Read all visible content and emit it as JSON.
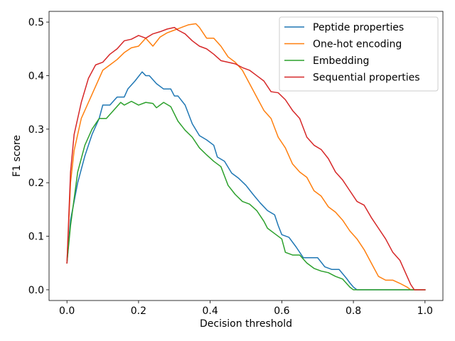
{
  "chart_data": {
    "type": "line",
    "title": "",
    "xlabel": "Decision threshold",
    "ylabel": "F1 score",
    "xlim": [
      -0.05,
      1.05
    ],
    "ylim": [
      -0.02,
      0.52
    ],
    "xticks": [
      0.0,
      0.2,
      0.4,
      0.6,
      0.8,
      1.0
    ],
    "xtick_labels": [
      "0.0",
      "0.2",
      "0.4",
      "0.6",
      "0.8",
      "1.0"
    ],
    "yticks": [
      0.0,
      0.1,
      0.2,
      0.3,
      0.4,
      0.5
    ],
    "ytick_labels": [
      "0.0",
      "0.1",
      "0.2",
      "0.3",
      "0.4",
      "0.5"
    ],
    "grid": false,
    "legend_position": "top-right",
    "series": [
      {
        "name": "Peptide properties",
        "color": "#1f77b4",
        "points": [
          [
            0.0,
            0.05
          ],
          [
            0.01,
            0.13
          ],
          [
            0.03,
            0.2
          ],
          [
            0.05,
            0.25
          ],
          [
            0.07,
            0.29
          ],
          [
            0.09,
            0.32
          ],
          [
            0.1,
            0.345
          ],
          [
            0.12,
            0.345
          ],
          [
            0.14,
            0.36
          ],
          [
            0.16,
            0.36
          ],
          [
            0.17,
            0.375
          ],
          [
            0.19,
            0.39
          ],
          [
            0.21,
            0.407
          ],
          [
            0.22,
            0.4
          ],
          [
            0.23,
            0.4
          ],
          [
            0.25,
            0.385
          ],
          [
            0.27,
            0.375
          ],
          [
            0.29,
            0.375
          ],
          [
            0.3,
            0.362
          ],
          [
            0.31,
            0.362
          ],
          [
            0.33,
            0.345
          ],
          [
            0.35,
            0.31
          ],
          [
            0.37,
            0.288
          ],
          [
            0.39,
            0.28
          ],
          [
            0.41,
            0.27
          ],
          [
            0.42,
            0.248
          ],
          [
            0.44,
            0.24
          ],
          [
            0.46,
            0.218
          ],
          [
            0.48,
            0.208
          ],
          [
            0.5,
            0.195
          ],
          [
            0.52,
            0.178
          ],
          [
            0.54,
            0.162
          ],
          [
            0.56,
            0.148
          ],
          [
            0.58,
            0.14
          ],
          [
            0.59,
            0.12
          ],
          [
            0.6,
            0.103
          ],
          [
            0.62,
            0.098
          ],
          [
            0.64,
            0.08
          ],
          [
            0.66,
            0.06
          ],
          [
            0.68,
            0.06
          ],
          [
            0.7,
            0.06
          ],
          [
            0.72,
            0.043
          ],
          [
            0.74,
            0.038
          ],
          [
            0.76,
            0.038
          ],
          [
            0.78,
            0.022
          ],
          [
            0.79,
            0.013
          ],
          [
            0.8,
            0.005
          ],
          [
            0.81,
            0.0
          ],
          [
            1.0,
            0.0
          ]
        ]
      },
      {
        "name": "One-hot encoding",
        "color": "#ff7f0e",
        "points": [
          [
            0.0,
            0.05
          ],
          [
            0.01,
            0.2
          ],
          [
            0.02,
            0.26
          ],
          [
            0.04,
            0.32
          ],
          [
            0.06,
            0.35
          ],
          [
            0.08,
            0.38
          ],
          [
            0.1,
            0.41
          ],
          [
            0.12,
            0.42
          ],
          [
            0.14,
            0.43
          ],
          [
            0.16,
            0.443
          ],
          [
            0.18,
            0.452
          ],
          [
            0.2,
            0.455
          ],
          [
            0.22,
            0.47
          ],
          [
            0.24,
            0.455
          ],
          [
            0.26,
            0.472
          ],
          [
            0.28,
            0.48
          ],
          [
            0.3,
            0.485
          ],
          [
            0.32,
            0.49
          ],
          [
            0.34,
            0.495
          ],
          [
            0.36,
            0.497
          ],
          [
            0.37,
            0.49
          ],
          [
            0.39,
            0.47
          ],
          [
            0.41,
            0.47
          ],
          [
            0.43,
            0.455
          ],
          [
            0.45,
            0.435
          ],
          [
            0.47,
            0.425
          ],
          [
            0.49,
            0.41
          ],
          [
            0.51,
            0.385
          ],
          [
            0.53,
            0.36
          ],
          [
            0.55,
            0.335
          ],
          [
            0.57,
            0.32
          ],
          [
            0.59,
            0.285
          ],
          [
            0.61,
            0.265
          ],
          [
            0.63,
            0.235
          ],
          [
            0.65,
            0.22
          ],
          [
            0.67,
            0.21
          ],
          [
            0.69,
            0.185
          ],
          [
            0.71,
            0.175
          ],
          [
            0.73,
            0.155
          ],
          [
            0.75,
            0.145
          ],
          [
            0.77,
            0.13
          ],
          [
            0.79,
            0.11
          ],
          [
            0.81,
            0.095
          ],
          [
            0.83,
            0.075
          ],
          [
            0.85,
            0.05
          ],
          [
            0.87,
            0.025
          ],
          [
            0.89,
            0.018
          ],
          [
            0.91,
            0.018
          ],
          [
            0.93,
            0.012
          ],
          [
            0.95,
            0.005
          ],
          [
            0.96,
            0.0
          ],
          [
            1.0,
            0.0
          ]
        ]
      },
      {
        "name": "Embedding",
        "color": "#2ca02c",
        "points": [
          [
            0.0,
            0.05
          ],
          [
            0.01,
            0.12
          ],
          [
            0.03,
            0.22
          ],
          [
            0.05,
            0.27
          ],
          [
            0.07,
            0.3
          ],
          [
            0.09,
            0.32
          ],
          [
            0.11,
            0.32
          ],
          [
            0.13,
            0.335
          ],
          [
            0.15,
            0.35
          ],
          [
            0.16,
            0.345
          ],
          [
            0.18,
            0.352
          ],
          [
            0.2,
            0.345
          ],
          [
            0.22,
            0.35
          ],
          [
            0.24,
            0.348
          ],
          [
            0.25,
            0.34
          ],
          [
            0.27,
            0.35
          ],
          [
            0.29,
            0.342
          ],
          [
            0.31,
            0.315
          ],
          [
            0.33,
            0.298
          ],
          [
            0.35,
            0.285
          ],
          [
            0.37,
            0.265
          ],
          [
            0.39,
            0.252
          ],
          [
            0.41,
            0.24
          ],
          [
            0.43,
            0.23
          ],
          [
            0.45,
            0.195
          ],
          [
            0.47,
            0.178
          ],
          [
            0.49,
            0.165
          ],
          [
            0.51,
            0.16
          ],
          [
            0.53,
            0.148
          ],
          [
            0.55,
            0.128
          ],
          [
            0.56,
            0.115
          ],
          [
            0.58,
            0.105
          ],
          [
            0.6,
            0.095
          ],
          [
            0.61,
            0.07
          ],
          [
            0.63,
            0.065
          ],
          [
            0.65,
            0.065
          ],
          [
            0.67,
            0.05
          ],
          [
            0.69,
            0.04
          ],
          [
            0.71,
            0.035
          ],
          [
            0.73,
            0.032
          ],
          [
            0.75,
            0.025
          ],
          [
            0.77,
            0.02
          ],
          [
            0.79,
            0.005
          ],
          [
            0.8,
            0.0
          ],
          [
            1.0,
            0.0
          ]
        ]
      },
      {
        "name": "Sequential properties",
        "color": "#d62728",
        "points": [
          [
            0.0,
            0.05
          ],
          [
            0.01,
            0.22
          ],
          [
            0.02,
            0.29
          ],
          [
            0.04,
            0.35
          ],
          [
            0.06,
            0.395
          ],
          [
            0.08,
            0.42
          ],
          [
            0.1,
            0.425
          ],
          [
            0.12,
            0.44
          ],
          [
            0.14,
            0.45
          ],
          [
            0.16,
            0.465
          ],
          [
            0.18,
            0.468
          ],
          [
            0.2,
            0.475
          ],
          [
            0.22,
            0.47
          ],
          [
            0.24,
            0.478
          ],
          [
            0.26,
            0.482
          ],
          [
            0.28,
            0.487
          ],
          [
            0.3,
            0.49
          ],
          [
            0.31,
            0.485
          ],
          [
            0.33,
            0.478
          ],
          [
            0.35,
            0.465
          ],
          [
            0.37,
            0.455
          ],
          [
            0.39,
            0.45
          ],
          [
            0.41,
            0.44
          ],
          [
            0.43,
            0.428
          ],
          [
            0.45,
            0.425
          ],
          [
            0.47,
            0.422
          ],
          [
            0.49,
            0.415
          ],
          [
            0.51,
            0.41
          ],
          [
            0.53,
            0.4
          ],
          [
            0.55,
            0.39
          ],
          [
            0.57,
            0.37
          ],
          [
            0.59,
            0.368
          ],
          [
            0.61,
            0.355
          ],
          [
            0.63,
            0.335
          ],
          [
            0.65,
            0.32
          ],
          [
            0.67,
            0.285
          ],
          [
            0.69,
            0.27
          ],
          [
            0.71,
            0.262
          ],
          [
            0.73,
            0.245
          ],
          [
            0.75,
            0.22
          ],
          [
            0.77,
            0.205
          ],
          [
            0.79,
            0.185
          ],
          [
            0.81,
            0.165
          ],
          [
            0.83,
            0.158
          ],
          [
            0.85,
            0.135
          ],
          [
            0.87,
            0.115
          ],
          [
            0.89,
            0.095
          ],
          [
            0.91,
            0.07
          ],
          [
            0.93,
            0.055
          ],
          [
            0.95,
            0.025
          ],
          [
            0.96,
            0.01
          ],
          [
            0.97,
            0.0
          ],
          [
            1.0,
            0.0
          ]
        ]
      }
    ]
  }
}
